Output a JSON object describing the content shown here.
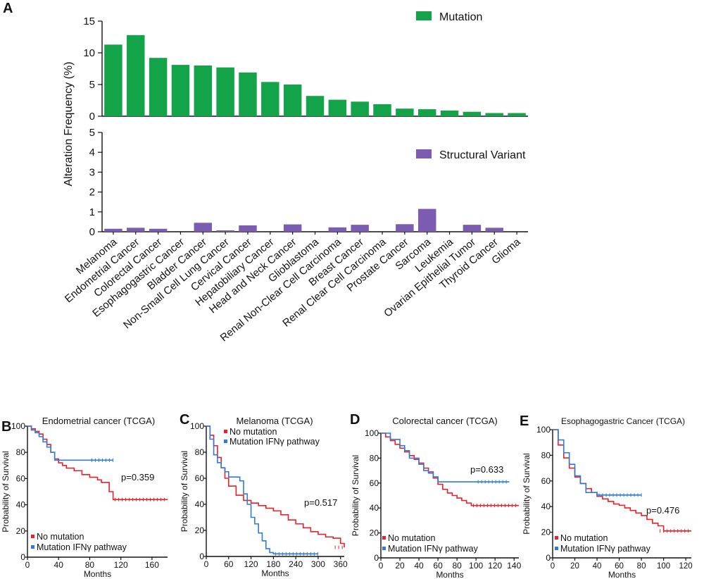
{
  "colors": {
    "mutation": "#13a44a",
    "structural": "#7b5cb0",
    "no_mutation": "#e8212b",
    "mutation_ifng": "#2f7bd6",
    "axis": "#111111"
  },
  "chart_data": [
    {
      "panel_label": "A",
      "type": "bar",
      "ylabel": "Alteration Frequency (%)",
      "categories": [
        "Melanoma",
        "Endometrial Cancer",
        "Colorectal Cancer",
        "Esophagogastric Cancer",
        "Bladder Cancer",
        "Non-Small Cell Lung Cancer",
        "Cervical Cancer",
        "Hepatobiliary Cancer",
        "Head and Neck Cancer",
        "Glioblastoma",
        "Renal Non-Clear Cell Carcinoma",
        "Breast Cancer",
        "Renal Clear Cell Carcinoma",
        "Prostate Cancer",
        "Sarcoma",
        "Leukemia",
        "Ovarian Epithelial Tumor",
        "Thyroid Cancer",
        "Glioma"
      ],
      "series": [
        {
          "name": "Mutation",
          "values": [
            11.3,
            12.8,
            9.2,
            8.1,
            8.0,
            7.7,
            6.9,
            5.4,
            5.0,
            3.2,
            2.6,
            2.3,
            1.9,
            1.2,
            1.1,
            0.9,
            0.7,
            0.5,
            0.5
          ],
          "ylim": [
            0,
            15
          ],
          "yticks": [
            "0",
            "5",
            "10",
            "15"
          ]
        },
        {
          "name": "Structural Variant",
          "values": [
            0.15,
            0.2,
            0.15,
            0,
            0.45,
            0.07,
            0.32,
            0,
            0.37,
            0,
            0.22,
            0.35,
            0,
            0.38,
            1.15,
            0,
            0.35,
            0.2,
            0
          ],
          "ylim": [
            0,
            5
          ],
          "yticks": [
            "0",
            "1",
            "2",
            "3",
            "4",
            "5"
          ]
        }
      ]
    },
    {
      "panel_label": "B",
      "type": "line",
      "title": "Endometrial cancer (TCGA)",
      "xlabel": "Months",
      "ylabel": "Probability of Survival",
      "xlim": [
        0,
        180
      ],
      "ylim": [
        0,
        100
      ],
      "xticks": [
        "0",
        "40",
        "80",
        "120",
        "160"
      ],
      "yticks": [
        "0",
        "20",
        "40",
        "60",
        "80",
        "100"
      ],
      "p_value": "p=0.359",
      "legend": [
        "No mutation",
        "Mutation IFNγ pathway"
      ],
      "series": [
        {
          "name": "No mutation",
          "x": [
            0,
            5,
            10,
            15,
            20,
            25,
            30,
            35,
            40,
            45,
            50,
            60,
            70,
            80,
            90,
            95,
            100,
            105,
            110,
            115,
            180
          ],
          "y": [
            100,
            98,
            96,
            94,
            90,
            86,
            80,
            75,
            72,
            70,
            68,
            66,
            63,
            61,
            59,
            57,
            57,
            50,
            44,
            44,
            44
          ]
        },
        {
          "name": "Mutation IFNγ pathway",
          "x": [
            0,
            5,
            10,
            15,
            20,
            25,
            30,
            35,
            40,
            60,
            80,
            100,
            110
          ],
          "y": [
            100,
            97,
            95,
            92,
            88,
            84,
            80,
            74,
            74,
            74,
            74,
            74,
            74
          ]
        }
      ]
    },
    {
      "panel_label": "C",
      "type": "line",
      "title": "Melanoma (TCGA)",
      "xlabel": "Months",
      "ylabel": "Probability of Survival",
      "xlim": [
        0,
        370
      ],
      "ylim": [
        0,
        100
      ],
      "xticks": [
        "0",
        "60",
        "120",
        "180",
        "240",
        "300",
        "360"
      ],
      "yticks": [
        "0",
        "20",
        "40",
        "60",
        "80",
        "100"
      ],
      "p_value": "p=0.517",
      "legend": [
        "No mutation",
        "Mutation IFNγ pathway"
      ],
      "series": [
        {
          "name": "No mutation",
          "x": [
            0,
            10,
            20,
            30,
            40,
            50,
            60,
            80,
            100,
            120,
            140,
            160,
            180,
            200,
            220,
            240,
            260,
            280,
            300,
            320,
            340,
            360,
            370
          ],
          "y": [
            100,
            93,
            85,
            76,
            68,
            60,
            54,
            47,
            43,
            41,
            39,
            37,
            35,
            32,
            28,
            25,
            22,
            19,
            17,
            15,
            14,
            10,
            7
          ]
        },
        {
          "name": "Mutation IFNγ pathway",
          "x": [
            0,
            10,
            20,
            30,
            40,
            50,
            60,
            70,
            80,
            90,
            100,
            110,
            120,
            130,
            140,
            150,
            160,
            170,
            180,
            240,
            300
          ],
          "y": [
            100,
            90,
            78,
            72,
            68,
            65,
            61,
            61,
            61,
            58,
            48,
            40,
            30,
            25,
            18,
            12,
            6,
            3,
            2,
            2,
            2
          ]
        }
      ]
    },
    {
      "panel_label": "D",
      "type": "line",
      "title": "Colorectal cancer (TCGA)",
      "xlabel": "Months",
      "ylabel": "Probability of Survival",
      "xlim": [
        0,
        145
      ],
      "ylim": [
        0,
        100
      ],
      "xticks": [
        "0",
        "20",
        "40",
        "60",
        "80",
        "100",
        "120",
        "140"
      ],
      "yticks": [
        "0",
        "20",
        "40",
        "60",
        "80",
        "100"
      ],
      "p_value": "p=0.633",
      "legend": [
        "No mutation",
        "Mutation IFNγ pathway"
      ],
      "series": [
        {
          "name": "No mutation",
          "x": [
            0,
            5,
            10,
            15,
            20,
            25,
            30,
            35,
            40,
            45,
            50,
            55,
            60,
            65,
            70,
            75,
            80,
            85,
            90,
            95,
            100,
            145
          ],
          "y": [
            100,
            97,
            94,
            91,
            88,
            85,
            82,
            79,
            76,
            72,
            69,
            64,
            59,
            55,
            52,
            50,
            48,
            46,
            44,
            42,
            42,
            42
          ]
        },
        {
          "name": "Mutation IFNγ pathway",
          "x": [
            0,
            10,
            20,
            25,
            30,
            35,
            40,
            45,
            50,
            55,
            60,
            80,
            100,
            120,
            135
          ],
          "y": [
            100,
            95,
            90,
            86,
            80,
            80,
            75,
            70,
            68,
            65,
            61,
            61,
            61,
            61,
            61
          ]
        }
      ]
    },
    {
      "panel_label": "E",
      "type": "line",
      "title": "Esophagogastric Cancer (TCGA)",
      "xlabel": "Months",
      "ylabel": "Probability of Survival",
      "xlim": [
        0,
        125
      ],
      "ylim": [
        0,
        100
      ],
      "xticks": [
        "0",
        "20",
        "40",
        "60",
        "80",
        "100",
        "120"
      ],
      "yticks": [
        "0",
        "20",
        "40",
        "60",
        "80",
        "100"
      ],
      "p_value": "p=0.476",
      "legend": [
        "No mutation",
        "Mutation IFNγ pathway"
      ],
      "series": [
        {
          "name": "No mutation",
          "x": [
            0,
            5,
            10,
            15,
            20,
            25,
            30,
            35,
            40,
            45,
            50,
            55,
            60,
            65,
            70,
            75,
            80,
            85,
            90,
            95,
            100,
            125
          ],
          "y": [
            100,
            88,
            78,
            70,
            63,
            58,
            54,
            51,
            48,
            46,
            44,
            42,
            41,
            39,
            37,
            35,
            33,
            30,
            27,
            25,
            21,
            21
          ]
        },
        {
          "name": "Mutation IFNγ pathway",
          "x": [
            0,
            5,
            10,
            15,
            20,
            25,
            30,
            40,
            60,
            80
          ],
          "y": [
            100,
            92,
            82,
            73,
            64,
            58,
            51,
            49,
            49,
            49
          ]
        }
      ]
    }
  ]
}
